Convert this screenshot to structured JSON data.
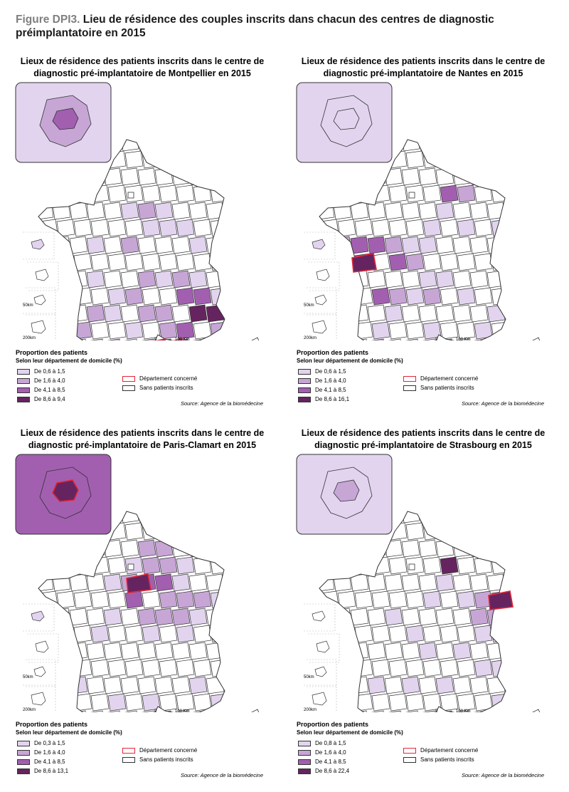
{
  "figure": {
    "label": "Figure DPI3.",
    "title": " Lieu de résidence des couples inscrits dans chacun des centres de diagnostic préimplantatoire en 2015"
  },
  "colors": {
    "c1": "#e2d4ef",
    "c2": "#c7a6d6",
    "c3": "#a25fb0",
    "c4": "#65245f",
    "none": "#ffffff",
    "border": "#333333",
    "highlight": "#e32636"
  },
  "legend_common": {
    "title": "Proportion des patients",
    "subtitle": "Selon leur département de domicile (%)",
    "concerned": "Département concerné",
    "no_patients": "Sans patients inscrits",
    "source": "Source: Agence de la biomédecine",
    "scale_0": "0",
    "scale_100": "100 Km",
    "inset_50": "50km",
    "inset_200": "200km"
  },
  "maps": [
    {
      "title": "Lieux de résidence des patients inscrits dans le centre de diagnostic pré-implantatoire de Montpellier en 2015",
      "classes": [
        "De 0,6 à 1,5",
        "De 1,6 à 4,0",
        "De 4,1 à 8,5",
        "De 8,6 à 9,4"
      ],
      "centre": "Montpellier"
    },
    {
      "title": "Lieux de résidence des patients inscrits dans le centre de diagnostic pré-implantatoire de Nantes en 2015",
      "classes": [
        "De 0,6 à 1,5",
        "De 1,6 à 4,0",
        "De 4,1 à 8,5",
        "De 8,6 à 16,1"
      ],
      "centre": "Nantes"
    },
    {
      "title": "Lieux de résidence des patients inscrits dans le centre de diagnostic pré-implantatoire de Paris-Clamart en 2015",
      "classes": [
        "De 0,3 à 1,5",
        "De 1,6 à 4,0",
        "De 4,1 à 8,5",
        "De 8,6 à 13,1"
      ],
      "centre": "Paris-Clamart"
    },
    {
      "title": "Lieux de résidence des patients inscrits dans le centre de diagnostic pré-implantatoire de Strasbourg en 2015",
      "classes": [
        "De 0,8 à 1,5",
        "De 1,6 à 4,0",
        "De 4,1 à 8,5",
        "De 8,6 à 22,4"
      ],
      "centre": "Strasbourg"
    }
  ]
}
